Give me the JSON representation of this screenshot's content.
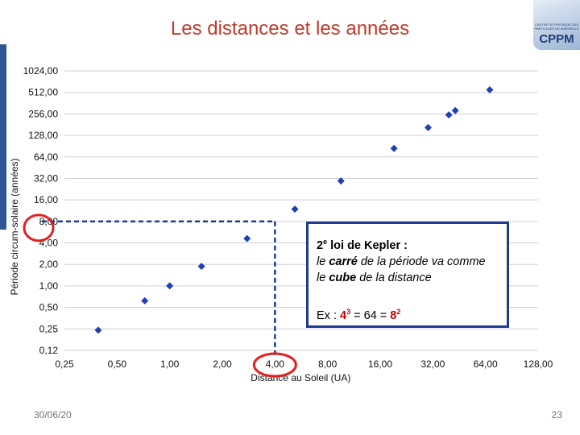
{
  "slide": {
    "title": "Les distances et les années",
    "date": "30/06/20",
    "page": "23",
    "logo": {
      "text": "CPPM",
      "small_line1": "CENTRE DE PHYSIQUE DES",
      "small_line2": "PARTICULES DE MARSEILLE"
    },
    "accent_color": "#c0392b",
    "bar_color": "#2f5597"
  },
  "chart_data": {
    "type": "scatter",
    "x_scale": "log2",
    "y_scale": "log2",
    "xlabel": "Distance au Soleil (UA)",
    "ylabel": "Période circum-solaire (années)",
    "xlim": [
      0.25,
      128
    ],
    "ylim": [
      0.125,
      1024
    ],
    "x_ticks": [
      0.25,
      0.5,
      1,
      2,
      4,
      8,
      16,
      32,
      64,
      128
    ],
    "x_tick_labels": [
      "0,25",
      "0,50",
      "1,00",
      "2,00",
      "4,00",
      "8,00",
      "16,00",
      "32,00",
      "64,00",
      "128,00"
    ],
    "y_ticks": [
      0.125,
      0.25,
      0.5,
      1,
      2,
      4,
      8,
      16,
      32,
      64,
      128,
      256,
      512,
      1024
    ],
    "y_tick_labels": [
      "0,12",
      "0,25",
      "0,50",
      "1,00",
      "2,00",
      "4,00",
      "8,00",
      "16,00",
      "32,00",
      "64,00",
      "128,00",
      "256,00",
      "512,00",
      "1024,00"
    ],
    "grid": "horizontal",
    "marker_color": "#1f3fb4",
    "points": [
      {
        "x": 0.39,
        "y": 0.24
      },
      {
        "x": 0.72,
        "y": 0.62
      },
      {
        "x": 1.0,
        "y": 1.0
      },
      {
        "x": 1.52,
        "y": 1.88
      },
      {
        "x": 2.77,
        "y": 4.6
      },
      {
        "x": 5.2,
        "y": 11.86
      },
      {
        "x": 9.54,
        "y": 29.46
      },
      {
        "x": 19.19,
        "y": 84.01
      },
      {
        "x": 30.07,
        "y": 164.8
      },
      {
        "x": 39.5,
        "y": 248
      },
      {
        "x": 43,
        "y": 285
      },
      {
        "x": 67.7,
        "y": 557
      }
    ],
    "highlight": {
      "x": 4,
      "y": 8,
      "color": "#1f3a8f",
      "circle_color": "#e02020"
    }
  },
  "textbox": {
    "line1_prefix": "2",
    "line1_sup": "e",
    "line1_rest": " loi de Kepler :",
    "line2_a": "le ",
    "line2_b": "carré",
    "line2_c": " de la période va comme",
    "line3_a": "le ",
    "line3_b": "cube",
    "line3_c": " de la distance",
    "ex_prefix": "Ex : ",
    "ex_base1": "4",
    "ex_exp1": "3",
    "ex_mid": " = 64 = ",
    "ex_base2": "8",
    "ex_exp2": "2"
  }
}
